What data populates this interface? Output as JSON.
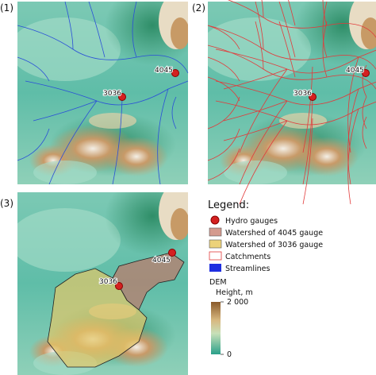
{
  "panels": [
    {
      "label": "(1)"
    },
    {
      "label": "(2)"
    },
    {
      "label": "(3)"
    }
  ],
  "gauges": [
    {
      "label": "4045"
    },
    {
      "label": "3036"
    }
  ],
  "legend": {
    "title": "Legend:",
    "items": [
      "Hydro gauges",
      "Watershed of 4045 gauge",
      "Watershed of 3036 gauge",
      "Catchments",
      "Streamlines"
    ]
  },
  "colorbar": {
    "title": "DEM",
    "subtitle": "Height, m",
    "lim": [
      0,
      2000
    ],
    "ticks": [
      {
        "value": 2000,
        "label": "2 000"
      },
      0
    ]
  }
}
